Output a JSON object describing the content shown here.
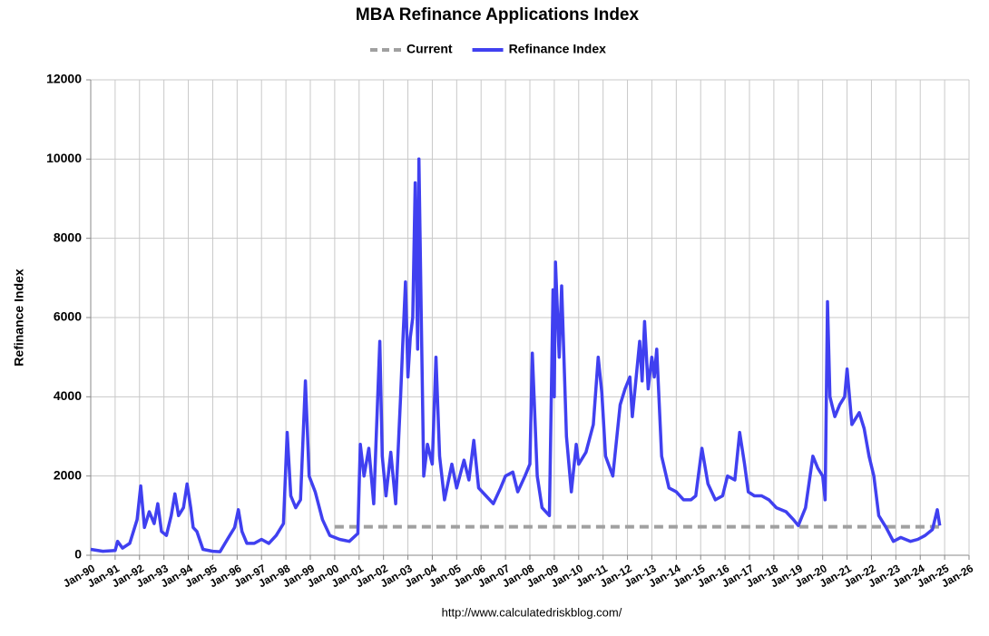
{
  "chart_data": {
    "type": "line",
    "title": "MBA Refinance Applications Index",
    "ylabel": "Refinance Index",
    "source": "http://www.calculatedriskblog.com/",
    "xlim": [
      1990,
      2026
    ],
    "ylim": [
      0,
      12000
    ],
    "yticks": [
      0,
      2000,
      4000,
      6000,
      8000,
      10000,
      12000
    ],
    "grid": true,
    "xticks": [
      {
        "value": 1990,
        "label": "Jan-90"
      },
      {
        "value": 1991,
        "label": "Jan-91"
      },
      {
        "value": 1992,
        "label": "Jan-92"
      },
      {
        "value": 1993,
        "label": "Jan-93"
      },
      {
        "value": 1994,
        "label": "Jan-94"
      },
      {
        "value": 1995,
        "label": "Jan-95"
      },
      {
        "value": 1996,
        "label": "Jan-96"
      },
      {
        "value": 1997,
        "label": "Jan-97"
      },
      {
        "value": 1998,
        "label": "Jan-98"
      },
      {
        "value": 1999,
        "label": "Jan-99"
      },
      {
        "value": 2000,
        "label": "Jan-00"
      },
      {
        "value": 2001,
        "label": "Jan-01"
      },
      {
        "value": 2002,
        "label": "Jan-02"
      },
      {
        "value": 2003,
        "label": "Jan-03"
      },
      {
        "value": 2004,
        "label": "Jan-04"
      },
      {
        "value": 2005,
        "label": "Jan-05"
      },
      {
        "value": 2006,
        "label": "Jan-06"
      },
      {
        "value": 2007,
        "label": "Jan-07"
      },
      {
        "value": 2008,
        "label": "Jan-08"
      },
      {
        "value": 2009,
        "label": "Jan-09"
      },
      {
        "value": 2010,
        "label": "Jan-10"
      },
      {
        "value": 2011,
        "label": "Jan-11"
      },
      {
        "value": 2012,
        "label": "Jan-12"
      },
      {
        "value": 2013,
        "label": "Jan-13"
      },
      {
        "value": 2014,
        "label": "Jan-14"
      },
      {
        "value": 2015,
        "label": "Jan-15"
      },
      {
        "value": 2016,
        "label": "Jan-16"
      },
      {
        "value": 2017,
        "label": "Jan-17"
      },
      {
        "value": 2018,
        "label": "Jan-18"
      },
      {
        "value": 2019,
        "label": "Jan-19"
      },
      {
        "value": 2020,
        "label": "Jan-20"
      },
      {
        "value": 2021,
        "label": "Jan-21"
      },
      {
        "value": 2022,
        "label": "Jan-22"
      },
      {
        "value": 2023,
        "label": "Jan-23"
      },
      {
        "value": 2024,
        "label": "Jan-24"
      },
      {
        "value": 2025,
        "label": "Jan-25"
      },
      {
        "value": 2026,
        "label": "Jan-26"
      }
    ],
    "series": [
      {
        "name": "Current",
        "color": "#a0a0a0",
        "dashed": true,
        "x": [
          2000,
          2024.8
        ],
        "values": [
          720,
          720
        ]
      },
      {
        "name": "Refinance Index",
        "color": "#4040f0",
        "dashed": false,
        "x": [
          1990.0,
          1990.5,
          1991.0,
          1991.1,
          1991.3,
          1991.6,
          1991.9,
          1992.05,
          1992.2,
          1992.4,
          1992.6,
          1992.75,
          1992.9,
          1993.1,
          1993.3,
          1993.45,
          1993.6,
          1993.8,
          1993.95,
          1994.1,
          1994.2,
          1994.35,
          1994.6,
          1995.0,
          1995.3,
          1995.6,
          1995.9,
          1996.05,
          1996.2,
          1996.4,
          1996.7,
          1997.0,
          1997.3,
          1997.6,
          1997.9,
          1998.05,
          1998.2,
          1998.4,
          1998.6,
          1998.8,
          1998.95,
          1999.2,
          1999.5,
          1999.8,
          2000.2,
          2000.6,
          2000.95,
          2001.05,
          2001.2,
          2001.4,
          2001.6,
          2001.85,
          2001.95,
          2002.1,
          2002.3,
          2002.5,
          2002.7,
          2002.8,
          2002.9,
          2003.0,
          2003.1,
          2003.2,
          2003.3,
          2003.4,
          2003.45,
          2003.55,
          2003.65,
          2003.8,
          2004.0,
          2004.15,
          2004.3,
          2004.5,
          2004.8,
          2005.0,
          2005.3,
          2005.5,
          2005.7,
          2005.9,
          2006.2,
          2006.5,
          2006.8,
          2007.0,
          2007.3,
          2007.5,
          2007.8,
          2008.0,
          2008.1,
          2008.3,
          2008.5,
          2008.8,
          2008.95,
          2009.0,
          2009.05,
          2009.2,
          2009.3,
          2009.5,
          2009.7,
          2009.9,
          2010.0,
          2010.3,
          2010.6,
          2010.8,
          2010.95,
          2011.1,
          2011.4,
          2011.7,
          2011.9,
          2012.1,
          2012.2,
          2012.5,
          2012.6,
          2012.7,
          2012.85,
          2013.0,
          2013.1,
          2013.2,
          2013.4,
          2013.7,
          2014.0,
          2014.3,
          2014.6,
          2014.8,
          2015.05,
          2015.3,
          2015.6,
          2015.9,
          2016.1,
          2016.4,
          2016.6,
          2016.8,
          2016.95,
          2017.2,
          2017.5,
          2017.8,
          2018.1,
          2018.5,
          2018.8,
          2019.0,
          2019.3,
          2019.6,
          2019.8,
          2020.0,
          2020.1,
          2020.2,
          2020.3,
          2020.5,
          2020.7,
          2020.9,
          2021.0,
          2021.2,
          2021.5,
          2021.7,
          2021.9,
          2022.1,
          2022.3,
          2022.6,
          2022.9,
          2023.2,
          2023.6,
          2023.9,
          2024.2,
          2024.5,
          2024.7,
          2024.8
        ],
        "values": [
          150,
          100,
          120,
          350,
          180,
          300,
          900,
          1750,
          700,
          1100,
          800,
          1300,
          600,
          500,
          1000,
          1550,
          1000,
          1200,
          1800,
          1200,
          700,
          600,
          150,
          100,
          90,
          400,
          700,
          1150,
          600,
          300,
          300,
          400,
          300,
          500,
          800,
          3100,
          1500,
          1200,
          1400,
          4400,
          2000,
          1600,
          900,
          500,
          400,
          350,
          550,
          2800,
          2000,
          2700,
          1300,
          5400,
          2500,
          1500,
          2600,
          1300,
          4000,
          5500,
          6900,
          4500,
          5500,
          6000,
          9400,
          5200,
          10000,
          6000,
          2000,
          2800,
          2300,
          5000,
          2500,
          1400,
          2300,
          1700,
          2400,
          1900,
          2900,
          1700,
          1500,
          1300,
          1700,
          2000,
          2100,
          1600,
          2000,
          2300,
          5100,
          2000,
          1200,
          1000,
          6700,
          4000,
          7400,
          5000,
          6800,
          3000,
          1600,
          2800,
          2300,
          2600,
          3300,
          5000,
          4100,
          2500,
          2000,
          3800,
          4200,
          4500,
          3500,
          5400,
          4400,
          5900,
          4200,
          5000,
          4500,
          5200,
          2500,
          1700,
          1600,
          1400,
          1400,
          1500,
          2700,
          1800,
          1400,
          1500,
          2000,
          1900,
          3100,
          2300,
          1600,
          1500,
          1500,
          1400,
          1200,
          1100,
          900,
          750,
          1200,
          2500,
          2200,
          2000,
          1400,
          6400,
          4000,
          3500,
          3800,
          4000,
          4700,
          3300,
          3600,
          3200,
          2500,
          2000,
          1000,
          700,
          350,
          450,
          350,
          400,
          500,
          650,
          1150,
          750
        ]
      }
    ]
  }
}
